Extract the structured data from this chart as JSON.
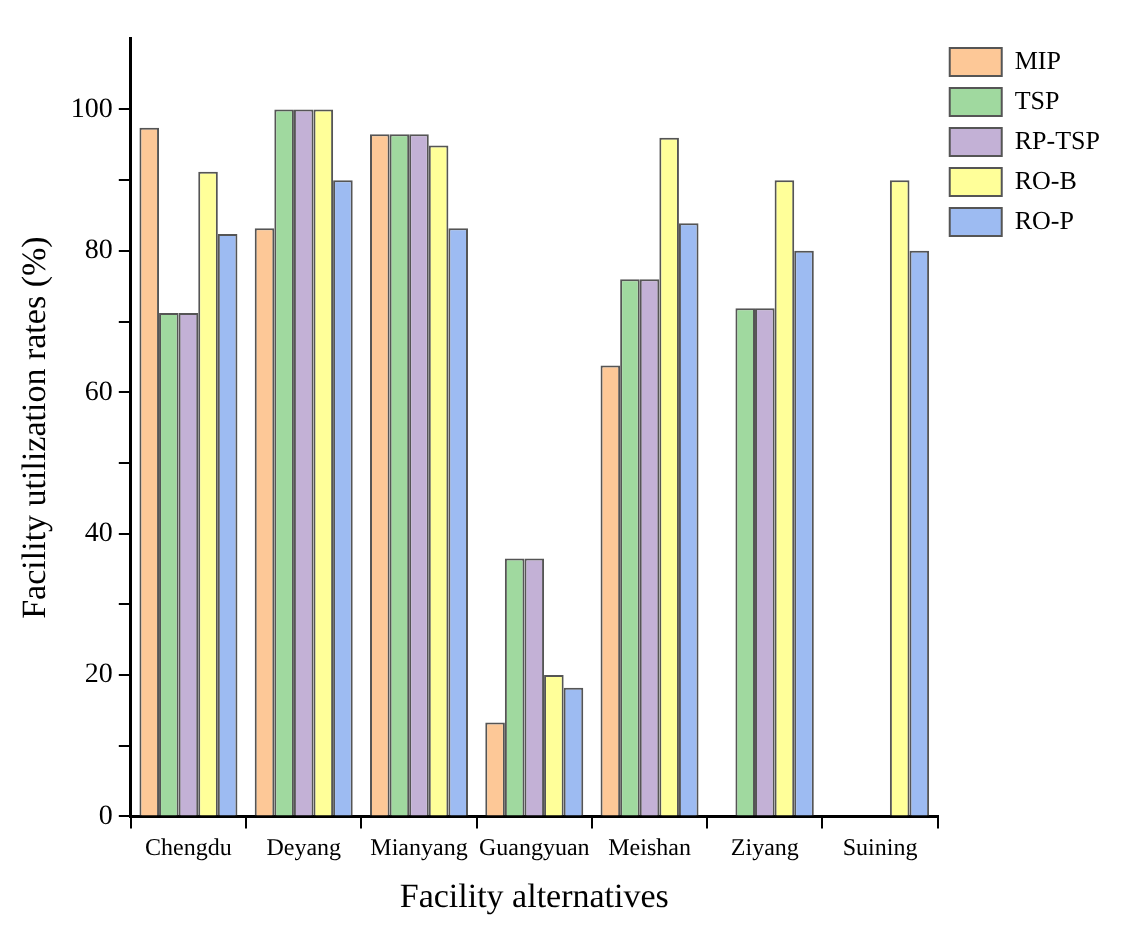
{
  "chart_data": {
    "type": "bar",
    "xlabel": "Facility alternatives",
    "ylabel": "Facility utilization rates (%)",
    "categories": [
      "Chengdu",
      "Deyang",
      "Mianyang",
      "Guangyuan",
      "Meishan",
      "Ziyang",
      "Suining"
    ],
    "series": [
      {
        "name": "MIP",
        "color": "#fdc897",
        "values": [
          97.4,
          83.2,
          96.5,
          13.3,
          63.8,
          null,
          null
        ]
      },
      {
        "name": "TSP",
        "color": "#a0d99f",
        "values": [
          71.2,
          100,
          96.5,
          36.5,
          76,
          71.9,
          null
        ]
      },
      {
        "name": "RP-TSP",
        "color": "#c3b1d6",
        "values": [
          71.2,
          100,
          96.5,
          36.5,
          76,
          71.9,
          null
        ]
      },
      {
        "name": "RO-B",
        "color": "#ffff99",
        "values": [
          91.2,
          100,
          94.9,
          20,
          96,
          90,
          90
        ]
      },
      {
        "name": "RO-P",
        "color": "#9dbbf2",
        "values": [
          82.4,
          90,
          83.2,
          18.2,
          83.9,
          80,
          80
        ]
      }
    ],
    "ylim": [
      0,
      110
    ],
    "yticks": [
      0,
      {
        "value": 10,
        "label": null
      },
      20,
      {
        "value": 30,
        "label": null
      },
      40,
      {
        "value": 50,
        "label": null
      },
      60,
      {
        "value": 70,
        "label": null
      },
      80,
      {
        "value": 90,
        "label": null
      },
      100
    ],
    "grid": false,
    "legend": "top right"
  }
}
